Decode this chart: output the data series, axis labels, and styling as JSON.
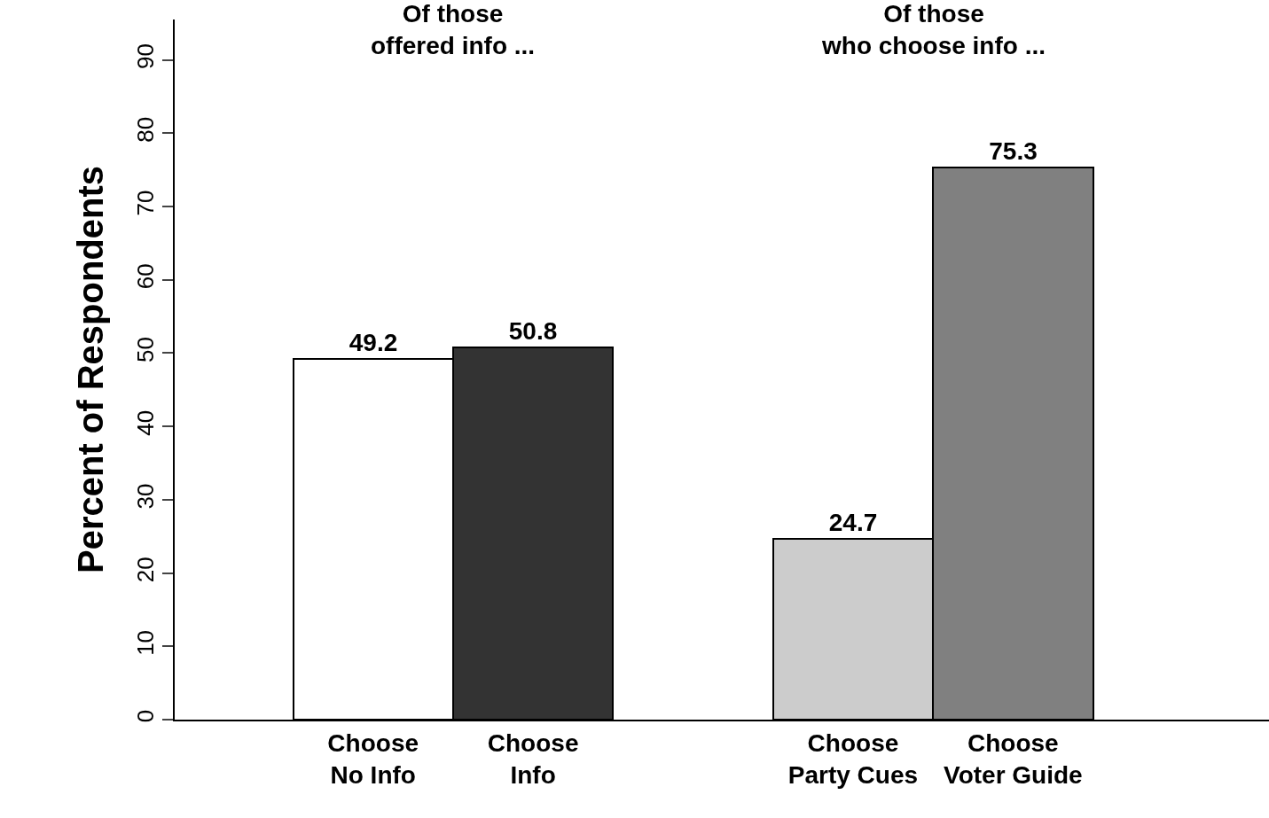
{
  "chart_data": {
    "type": "bar",
    "ylabel": "Percent of Respondents",
    "categories": [
      "Choose\nNo Info",
      "Choose\nInfo",
      "Choose\nParty Cues",
      "Choose\nVoter Guide"
    ],
    "values": [
      49.2,
      50.8,
      24.7,
      75.3
    ],
    "colors": [
      "#ffffff",
      "#333333",
      "#cccccc",
      "#808080"
    ],
    "ylim": [
      0,
      95.5
    ],
    "yticks": [
      0,
      10,
      20,
      30,
      40,
      50,
      60,
      70,
      80,
      90
    ],
    "data_labels": true,
    "annotations": [
      "Of those\noffered info ...",
      "Of those\nwho choose info ..."
    ]
  }
}
